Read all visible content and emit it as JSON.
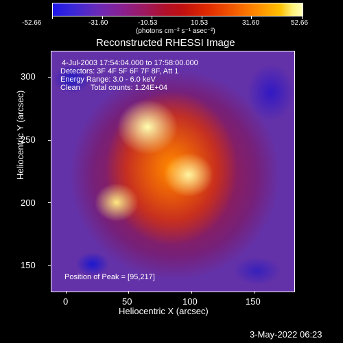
{
  "colorbar": {
    "ticks": [
      "-52.66",
      "-31.60",
      "-10.53",
      "10.53",
      "31.60",
      "52.66"
    ],
    "units": "(photons cm⁻² s⁻¹ asec⁻²)"
  },
  "title": "Reconstructed RHESSI Image",
  "info": {
    "time": "4-Jul-2003 17:54:04.000 to 17:58:00.000",
    "detectors": "Detectors: 3F 4F 5F 6F 7F 8F, Att 1",
    "energy": "Energy Range: 3.0 - 6.0 keV",
    "clean": "Clean     Total counts: 1.24E+04"
  },
  "peak": "Position of Peak = [95,217]",
  "x_axis": {
    "label": "Heliocentric X (arcsec)",
    "ticks": [
      "0",
      "50",
      "100",
      "150"
    ]
  },
  "y_axis": {
    "label": "Heliocentric Y (arcsec)",
    "ticks": [
      "300",
      "250",
      "200",
      "150"
    ]
  },
  "date_stamp": "3-May-2022 06:23"
}
